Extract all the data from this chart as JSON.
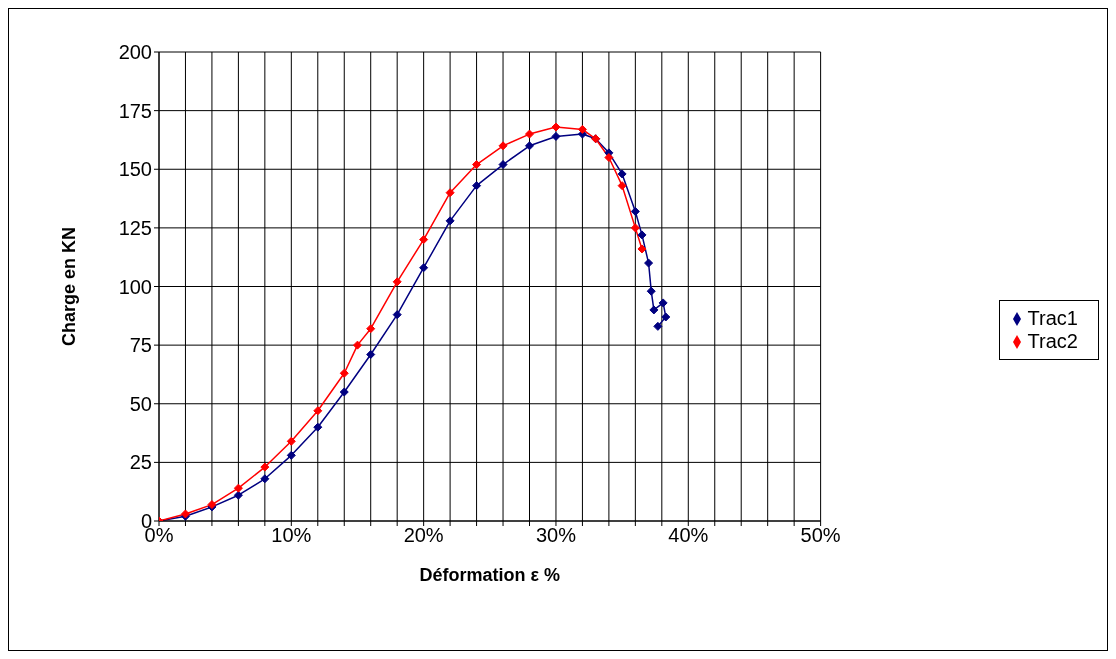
{
  "chart_data": {
    "type": "line",
    "xlabel": "Déformation ε %",
    "ylabel": "Charge en KN",
    "xlim": [
      0,
      50
    ],
    "xticks": [
      {
        "value": 0,
        "label": "0%"
      },
      {
        "value": 2,
        "label": null
      },
      {
        "value": 4,
        "label": null
      },
      {
        "value": 6,
        "label": null
      },
      {
        "value": 8,
        "label": null
      },
      {
        "value": 10,
        "label": "10%"
      },
      {
        "value": 12,
        "label": null
      },
      {
        "value": 14,
        "label": null
      },
      {
        "value": 16,
        "label": null
      },
      {
        "value": 18,
        "label": null
      },
      {
        "value": 20,
        "label": "20%"
      },
      {
        "value": 22,
        "label": null
      },
      {
        "value": 24,
        "label": null
      },
      {
        "value": 26,
        "label": null
      },
      {
        "value": 28,
        "label": null
      },
      {
        "value": 30,
        "label": "30%"
      },
      {
        "value": 32,
        "label": null
      },
      {
        "value": 34,
        "label": null
      },
      {
        "value": 36,
        "label": null
      },
      {
        "value": 38,
        "label": null
      },
      {
        "value": 40,
        "label": "40%"
      },
      {
        "value": 42,
        "label": null
      },
      {
        "value": 44,
        "label": null
      },
      {
        "value": 46,
        "label": null
      },
      {
        "value": 48,
        "label": null
      },
      {
        "value": 50,
        "label": "50%"
      }
    ],
    "ylim": [
      0,
      200
    ],
    "yticks": [
      0,
      25,
      50,
      75,
      100,
      125,
      150,
      175,
      200
    ],
    "grid": true,
    "legend": "right",
    "marker": "diamond",
    "line_style": "solid",
    "series": [
      {
        "name": "Trac1",
        "color": "#000080",
        "x": [
          0,
          2,
          4,
          6,
          8,
          10,
          12,
          14,
          16,
          18,
          20,
          22,
          24,
          26,
          28,
          30,
          32,
          33,
          34,
          35,
          36,
          36.5,
          37,
          37.2,
          37.4,
          38.1,
          38.3,
          37.7
        ],
        "values": [
          0,
          2,
          6,
          11,
          18,
          28,
          40,
          55,
          71,
          88,
          108,
          128,
          143,
          152,
          160,
          164,
          165,
          163,
          157,
          148,
          132,
          122,
          110,
          98,
          90,
          93,
          87,
          83
        ]
      },
      {
        "name": "Trac2",
        "color": "#ff0000",
        "x": [
          0,
          2,
          4,
          6,
          8,
          10,
          12,
          14,
          15,
          16,
          18,
          20,
          22,
          24,
          26,
          28,
          30,
          32,
          33,
          34,
          35,
          36,
          36.5
        ],
        "values": [
          0,
          3,
          7,
          14,
          23,
          34,
          47,
          63,
          75,
          82,
          102,
          120,
          140,
          152,
          160,
          165,
          168,
          167,
          163,
          155,
          143,
          125,
          116
        ]
      }
    ]
  }
}
